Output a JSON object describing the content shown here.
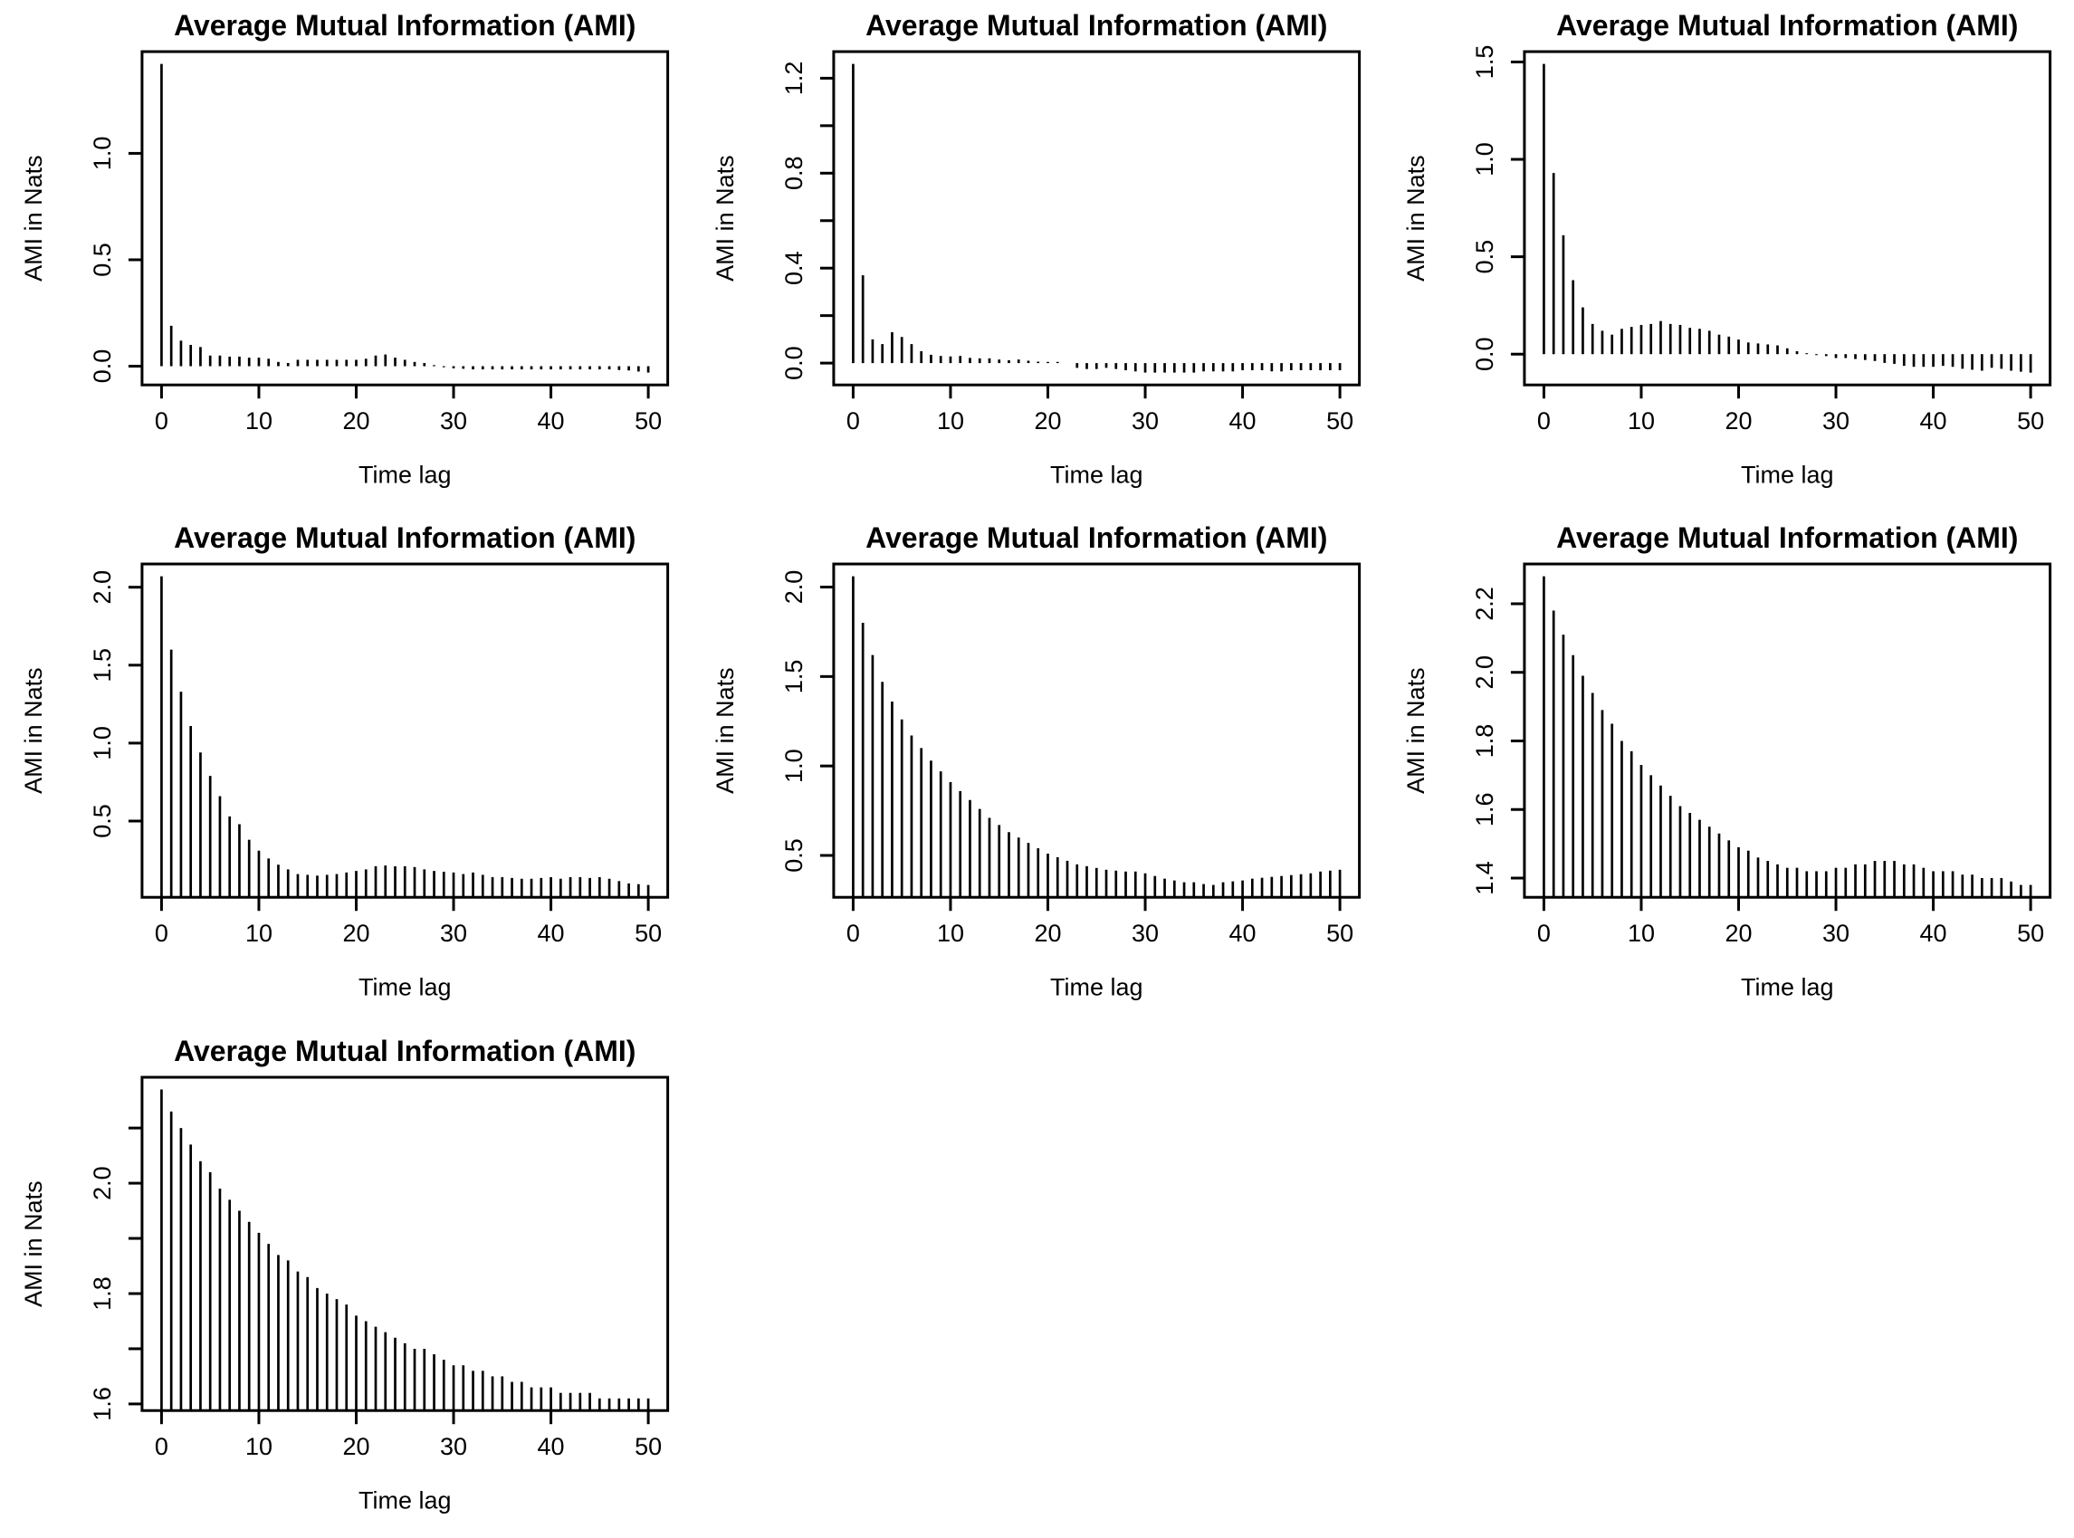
{
  "figure": {
    "background": "#ffffff",
    "ink_color": "#000000",
    "grid": "3 columns x 3 rows, 7 plots (last row has one plot, two empty cells)"
  },
  "chart_data": [
    {
      "type": "bar",
      "title": "Average Mutual Information (AMI)",
      "xlabel": "Time lag",
      "ylabel": "AMI in Nats",
      "x_range": [
        0,
        50
      ],
      "x_step": 1,
      "xlim": [
        -2,
        52
      ],
      "ylim": [
        -0.088,
        1.478
      ],
      "x_ticks": [
        0,
        10,
        20,
        30,
        40,
        50
      ],
      "x_tick_labels": [
        "0",
        "10",
        "20",
        "30",
        "40",
        "50"
      ],
      "y_ticks": [
        0.0,
        0.5,
        1.0
      ],
      "y_tick_labels": [
        "0.0",
        "0.5",
        "1.0"
      ],
      "bar_color": "#000000",
      "values": [
        1.42,
        0.19,
        0.12,
        0.1,
        0.09,
        0.05,
        0.05,
        0.045,
        0.045,
        0.04,
        0.04,
        0.035,
        0.02,
        0.015,
        0.03,
        0.03,
        0.03,
        0.03,
        0.03,
        0.03,
        0.03,
        0.035,
        0.05,
        0.055,
        0.04,
        0.03,
        0.02,
        0.015,
        0.005,
        -0.005,
        -0.01,
        -0.012,
        -0.015,
        -0.015,
        -0.015,
        -0.015,
        -0.015,
        -0.015,
        -0.015,
        -0.015,
        -0.015,
        -0.015,
        -0.015,
        -0.015,
        -0.015,
        -0.015,
        -0.015,
        -0.018,
        -0.02,
        -0.025,
        -0.03
      ]
    },
    {
      "type": "bar",
      "title": "Average Mutual Information (AMI)",
      "xlabel": "Time lag",
      "ylabel": "AMI in Nats",
      "x_range": [
        0,
        50
      ],
      "x_step": 1,
      "xlim": [
        -2,
        52
      ],
      "ylim": [
        -0.092,
        1.312
      ],
      "x_ticks": [
        0,
        10,
        20,
        30,
        40,
        50
      ],
      "x_tick_labels": [
        "0",
        "10",
        "20",
        "30",
        "40",
        "50"
      ],
      "y_ticks": [
        0.0,
        0.2,
        0.4,
        0.6,
        0.8,
        1.0,
        1.2
      ],
      "y_tick_labels": [
        "0.0",
        "",
        "0.4",
        "",
        "0.8",
        "",
        "1.2"
      ],
      "bar_color": "#000000",
      "values": [
        1.26,
        0.37,
        0.1,
        0.08,
        0.13,
        0.11,
        0.08,
        0.05,
        0.035,
        0.03,
        0.028,
        0.03,
        0.022,
        0.02,
        0.02,
        0.015,
        0.012,
        0.015,
        0.01,
        0.006,
        0.005,
        0.005,
        0.0,
        -0.02,
        -0.025,
        -0.025,
        -0.02,
        -0.025,
        -0.03,
        -0.035,
        -0.04,
        -0.04,
        -0.04,
        -0.04,
        -0.04,
        -0.04,
        -0.035,
        -0.035,
        -0.035,
        -0.035,
        -0.03,
        -0.03,
        -0.03,
        -0.035,
        -0.035,
        -0.03,
        -0.03,
        -0.03,
        -0.03,
        -0.03,
        -0.03
      ]
    },
    {
      "type": "bar",
      "title": "Average Mutual Information (AMI)",
      "xlabel": "Time lag",
      "ylabel": "AMI in Nats",
      "x_range": [
        0,
        50
      ],
      "x_step": 1,
      "xlim": [
        -2,
        52
      ],
      "ylim": [
        -0.158,
        1.553
      ],
      "x_ticks": [
        0,
        10,
        20,
        30,
        40,
        50
      ],
      "x_tick_labels": [
        "0",
        "10",
        "20",
        "30",
        "40",
        "50"
      ],
      "y_ticks": [
        0.0,
        0.5,
        1.0,
        1.5
      ],
      "y_tick_labels": [
        "0.0",
        "0.5",
        "1.0",
        "1.5"
      ],
      "bar_color": "#000000",
      "values": [
        1.49,
        0.93,
        0.61,
        0.38,
        0.24,
        0.155,
        0.12,
        0.1,
        0.13,
        0.14,
        0.15,
        0.155,
        0.17,
        0.155,
        0.15,
        0.135,
        0.13,
        0.12,
        0.1,
        0.09,
        0.075,
        0.06,
        0.055,
        0.05,
        0.045,
        0.03,
        0.015,
        0.005,
        -0.005,
        -0.01,
        -0.02,
        -0.02,
        -0.025,
        -0.03,
        -0.035,
        -0.045,
        -0.05,
        -0.06,
        -0.065,
        -0.065,
        -0.065,
        -0.06,
        -0.065,
        -0.075,
        -0.08,
        -0.085,
        -0.07,
        -0.075,
        -0.085,
        -0.09,
        -0.095
      ]
    },
    {
      "type": "bar",
      "title": "Average Mutual Information (AMI)",
      "xlabel": "Time lag",
      "ylabel": "AMI in Nats",
      "x_range": [
        0,
        50
      ],
      "x_step": 1,
      "xlim": [
        -2,
        52
      ],
      "ylim": [
        0.011,
        2.149
      ],
      "x_ticks": [
        0,
        10,
        20,
        30,
        40,
        50
      ],
      "x_tick_labels": [
        "0",
        "10",
        "20",
        "30",
        "40",
        "50"
      ],
      "y_ticks": [
        0.5,
        1.0,
        1.5,
        2.0
      ],
      "y_tick_labels": [
        "0.5",
        "1.0",
        "1.5",
        "2.0"
      ],
      "bar_color": "#000000",
      "values": [
        2.07,
        1.6,
        1.33,
        1.11,
        0.94,
        0.79,
        0.66,
        0.53,
        0.48,
        0.38,
        0.31,
        0.26,
        0.22,
        0.19,
        0.16,
        0.155,
        0.15,
        0.155,
        0.16,
        0.17,
        0.18,
        0.19,
        0.21,
        0.215,
        0.21,
        0.21,
        0.205,
        0.19,
        0.18,
        0.175,
        0.17,
        0.16,
        0.17,
        0.155,
        0.14,
        0.14,
        0.135,
        0.13,
        0.13,
        0.135,
        0.14,
        0.13,
        0.14,
        0.14,
        0.135,
        0.14,
        0.13,
        0.115,
        0.1,
        0.095,
        0.09
      ]
    },
    {
      "type": "bar",
      "title": "Average Mutual Information (AMI)",
      "xlabel": "Time lag",
      "ylabel": "AMI in Nats",
      "x_range": [
        0,
        50
      ],
      "x_step": 1,
      "xlim": [
        -2,
        52
      ],
      "ylim": [
        0.266,
        2.129
      ],
      "x_ticks": [
        0,
        10,
        20,
        30,
        40,
        50
      ],
      "x_tick_labels": [
        "0",
        "10",
        "20",
        "30",
        "40",
        "50"
      ],
      "y_ticks": [
        0.5,
        1.0,
        1.5,
        2.0
      ],
      "y_tick_labels": [
        "0.5",
        "1.0",
        "1.5",
        "2.0"
      ],
      "bar_color": "#000000",
      "values": [
        2.06,
        1.8,
        1.62,
        1.47,
        1.36,
        1.26,
        1.17,
        1.1,
        1.03,
        0.97,
        0.91,
        0.86,
        0.81,
        0.76,
        0.71,
        0.67,
        0.63,
        0.6,
        0.57,
        0.54,
        0.51,
        0.49,
        0.47,
        0.45,
        0.44,
        0.43,
        0.42,
        0.415,
        0.41,
        0.41,
        0.4,
        0.385,
        0.37,
        0.36,
        0.35,
        0.35,
        0.34,
        0.335,
        0.35,
        0.355,
        0.36,
        0.37,
        0.375,
        0.38,
        0.385,
        0.39,
        0.395,
        0.4,
        0.41,
        0.415,
        0.42
      ]
    },
    {
      "type": "bar",
      "title": "Average Mutual Information (AMI)",
      "xlabel": "Time lag",
      "ylabel": "AMI in Nats",
      "x_range": [
        0,
        50
      ],
      "x_step": 1,
      "xlim": [
        -2,
        52
      ],
      "ylim": [
        1.344,
        2.316
      ],
      "x_ticks": [
        0,
        10,
        20,
        30,
        40,
        50
      ],
      "x_tick_labels": [
        "0",
        "10",
        "20",
        "30",
        "40",
        "50"
      ],
      "y_ticks": [
        1.4,
        1.6,
        1.8,
        2.0,
        2.2
      ],
      "y_tick_labels": [
        "1.4",
        "1.6",
        "1.8",
        "2.0",
        "2.2"
      ],
      "bar_color": "#000000",
      "values": [
        2.28,
        2.18,
        2.11,
        2.05,
        1.99,
        1.94,
        1.89,
        1.85,
        1.8,
        1.77,
        1.73,
        1.7,
        1.67,
        1.64,
        1.61,
        1.59,
        1.57,
        1.55,
        1.53,
        1.51,
        1.49,
        1.48,
        1.46,
        1.45,
        1.44,
        1.43,
        1.43,
        1.42,
        1.42,
        1.42,
        1.43,
        1.43,
        1.44,
        1.44,
        1.45,
        1.45,
        1.45,
        1.44,
        1.44,
        1.43,
        1.42,
        1.42,
        1.42,
        1.41,
        1.41,
        1.4,
        1.4,
        1.4,
        1.39,
        1.38,
        1.38
      ]
    },
    {
      "type": "bar",
      "title": "Average Mutual Information (AMI)",
      "xlabel": "Time lag",
      "ylabel": "AMI in Nats",
      "x_range": [
        0,
        50
      ],
      "x_step": 1,
      "xlim": [
        -2,
        52
      ],
      "ylim": [
        1.588,
        2.192
      ],
      "x_ticks": [
        0,
        10,
        20,
        30,
        40,
        50
      ],
      "x_tick_labels": [
        "0",
        "10",
        "20",
        "30",
        "40",
        "50"
      ],
      "y_ticks": [
        1.6,
        1.7,
        1.8,
        1.9,
        2.0,
        2.1
      ],
      "y_tick_labels": [
        "1.6",
        "",
        "1.8",
        "",
        "2.0",
        ""
      ],
      "bar_color": "#000000",
      "values": [
        2.17,
        2.13,
        2.1,
        2.07,
        2.04,
        2.02,
        1.99,
        1.97,
        1.95,
        1.93,
        1.91,
        1.89,
        1.87,
        1.86,
        1.84,
        1.83,
        1.81,
        1.8,
        1.79,
        1.78,
        1.76,
        1.75,
        1.74,
        1.73,
        1.72,
        1.71,
        1.7,
        1.7,
        1.69,
        1.68,
        1.67,
        1.67,
        1.66,
        1.66,
        1.65,
        1.65,
        1.64,
        1.64,
        1.63,
        1.63,
        1.63,
        1.62,
        1.62,
        1.62,
        1.62,
        1.61,
        1.61,
        1.61,
        1.61,
        1.61,
        1.61
      ]
    }
  ]
}
